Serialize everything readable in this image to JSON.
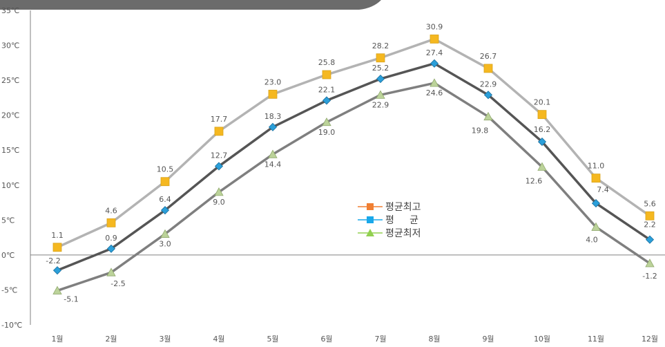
{
  "chart_data": {
    "type": "line",
    "categories": [
      "1월",
      "2월",
      "3월",
      "4월",
      "5월",
      "6월",
      "7월",
      "8월",
      "9월",
      "10월",
      "11월",
      "12월"
    ],
    "series": [
      {
        "name": "평균최고",
        "values": [
          1.1,
          4.6,
          10.5,
          17.7,
          23.0,
          25.8,
          28.2,
          30.9,
          26.7,
          20.1,
          11.0,
          5.6
        ],
        "line_color": "#b3b3b3",
        "marker": "square",
        "marker_color": "#f5b820",
        "legend_color": "#f07f33"
      },
      {
        "name": "평     균",
        "values": [
          -2.2,
          0.9,
          6.4,
          12.7,
          18.3,
          22.1,
          25.2,
          27.4,
          22.9,
          16.2,
          7.4,
          2.2
        ],
        "line_color": "#555555",
        "marker": "diamond",
        "marker_color": "#2b9fd9",
        "legend_color": "#1aa8ea"
      },
      {
        "name": "평균최저",
        "values": [
          -5.1,
          -2.5,
          3.0,
          9.0,
          14.4,
          19.0,
          22.9,
          24.6,
          19.8,
          12.6,
          4.0,
          -1.2
        ],
        "line_color": "#7f7f7f",
        "marker": "triangle",
        "marker_color": "#bcd39a",
        "legend_color": "#92d050"
      }
    ],
    "yticks": [
      {
        "value": 35,
        "label": "35℃"
      },
      {
        "value": 30,
        "label": "30℃"
      },
      {
        "value": 25,
        "label": "25℃"
      },
      {
        "value": 20,
        "label": "20℃"
      },
      {
        "value": 15,
        "label": "15℃"
      },
      {
        "value": 10,
        "label": "10℃"
      },
      {
        "value": 5,
        "label": "5℃"
      },
      {
        "value": 0,
        "label": "0℃"
      },
      {
        "value": -5,
        "label": "-5℃"
      },
      {
        "value": -10,
        "label": "-10℃"
      }
    ],
    "ylim": [
      -10,
      35
    ],
    "grid": false,
    "legend_position": "center-right"
  }
}
